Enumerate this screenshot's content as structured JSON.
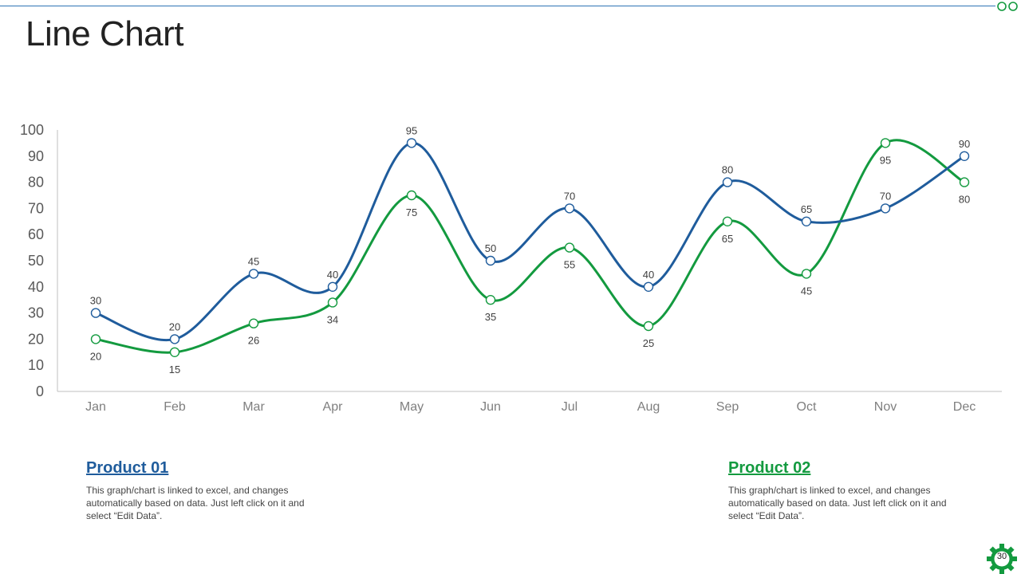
{
  "slide": {
    "title": "Line Chart",
    "page_number": "30"
  },
  "products": [
    {
      "title": "Product 01",
      "description": "This graph/chart is linked to excel, and changes automatically based on data. Just left click on it and select “Edit Data”."
    },
    {
      "title": "Product 02",
      "description": "This graph/chart is linked to excel, and changes automatically based on data. Just left click on it and select “Edit Data”."
    }
  ],
  "colors": {
    "series_blue": "#1f5c9c",
    "series_green": "#139a3f",
    "accent_rule": "#2e74b5"
  },
  "chart_data": {
    "type": "line",
    "title": "",
    "xlabel": "",
    "ylabel": "",
    "categories": [
      "Jan",
      "Feb",
      "Mar",
      "Apr",
      "May",
      "Jun",
      "Jul",
      "Aug",
      "Sep",
      "Oct",
      "Nov",
      "Dec"
    ],
    "ylim": [
      0,
      100
    ],
    "yticks": [
      0,
      10,
      20,
      30,
      40,
      50,
      60,
      70,
      80,
      90,
      100
    ],
    "grid": false,
    "legend": "none",
    "smooth": true,
    "series": [
      {
        "color": "#1f5c9c",
        "label_position": "above",
        "values": [
          30,
          20,
          45,
          40,
          95,
          50,
          70,
          40,
          80,
          65,
          70,
          90
        ]
      },
      {
        "color": "#139a3f",
        "label_position": "below",
        "values": [
          20,
          15,
          26,
          34,
          75,
          35,
          55,
          25,
          65,
          45,
          95,
          80
        ]
      }
    ]
  }
}
